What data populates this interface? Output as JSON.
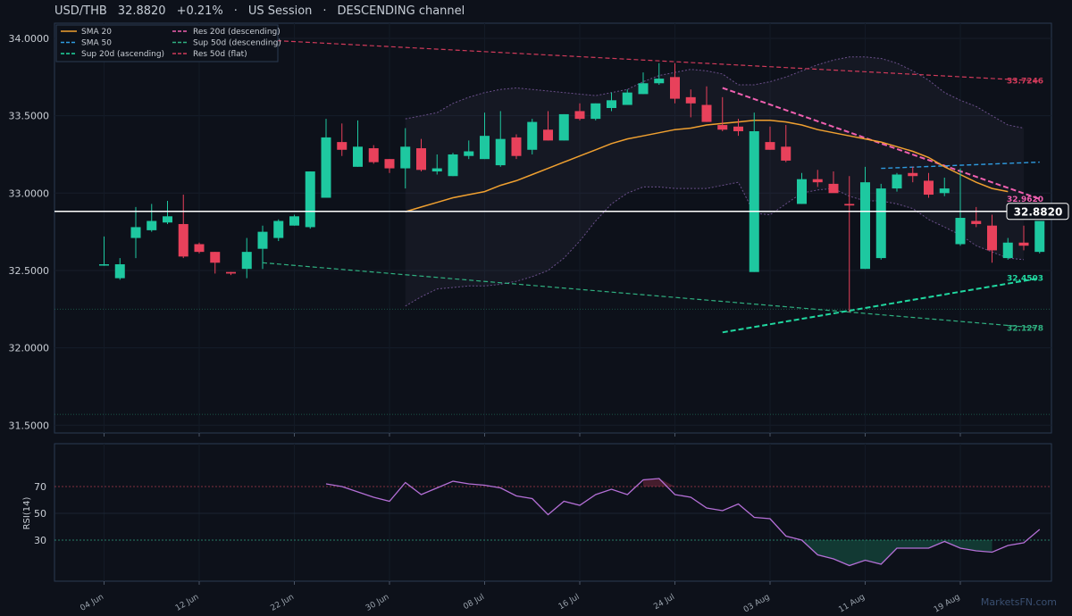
{
  "header": {
    "symbol": "USD/THB",
    "price": "32.8820",
    "change": "+0.21%",
    "sep1": "·",
    "session": "US Session",
    "sep2": "·",
    "channel": "DESCENDING channel"
  },
  "watermark": "MarketsFN.com",
  "colors": {
    "background": "#0d111a",
    "up": "#1ec8a0",
    "down": "#e8415b",
    "sma20": "#f0a030",
    "sma50": "#2f9be0",
    "res20": "#f060b0",
    "sup20": "#20d8a0",
    "res50": "#d03a5a",
    "sup50": "#2fb080",
    "rsi": "#b46fd6"
  },
  "chart_data": [
    {
      "type": "candlestick",
      "yticks": [
        "34.0000",
        "33.5000",
        "33.0000",
        "32.5000",
        "32.0000",
        "31.5000"
      ],
      "ylim": [
        31.5,
        34.0
      ],
      "xticks": [
        "04 Jun",
        "12 Jun",
        "22 Jun",
        "30 Jun",
        "08 Jul",
        "16 Jul",
        "24 Jul",
        "03 Aug",
        "11 Aug",
        "19 Aug"
      ],
      "current_price": "32.8820",
      "legend": [
        {
          "name": "SMA 20",
          "style": "solid",
          "color": "#f0a030"
        },
        {
          "name": "SMA 50",
          "style": "dashed",
          "color": "#2f9be0"
        },
        {
          "name": "Sup 20d (ascending)",
          "style": "dashed",
          "color": "#20d8a0"
        },
        {
          "name": "Res 20d (descending)",
          "style": "dashed",
          "color": "#f060b0"
        },
        {
          "name": "Sup 50d (descending)",
          "style": "dashed",
          "color": "#2fb080"
        },
        {
          "name": "Res 50d (flat)",
          "style": "dashed",
          "color": "#d03a5a"
        }
      ],
      "level_labels": [
        {
          "value": "33.7246",
          "color": "#d03a5a"
        },
        {
          "value": "32.9620",
          "color": "#f060b0"
        },
        {
          "value": "32.4503",
          "color": "#20d8a0"
        },
        {
          "value": "32.1278",
          "color": "#2fb080"
        }
      ],
      "candles": [
        {
          "o": 32.54,
          "h": 32.72,
          "l": 32.53,
          "c": 32.54
        },
        {
          "o": 32.45,
          "h": 32.58,
          "l": 32.44,
          "c": 32.54
        },
        {
          "o": 32.71,
          "h": 32.91,
          "l": 32.58,
          "c": 32.78
        },
        {
          "o": 32.76,
          "h": 32.93,
          "l": 32.75,
          "c": 32.82
        },
        {
          "o": 32.81,
          "h": 32.95,
          "l": 32.8,
          "c": 32.85
        },
        {
          "o": 32.8,
          "h": 32.99,
          "l": 32.58,
          "c": 32.59
        },
        {
          "o": 32.67,
          "h": 32.68,
          "l": 32.61,
          "c": 32.62
        },
        {
          "o": 32.62,
          "h": 32.62,
          "l": 32.48,
          "c": 32.55
        },
        {
          "o": 32.49,
          "h": 32.49,
          "l": 32.47,
          "c": 32.48
        },
        {
          "o": 32.51,
          "h": 32.71,
          "l": 32.45,
          "c": 32.62
        },
        {
          "o": 32.64,
          "h": 32.79,
          "l": 32.51,
          "c": 32.75
        },
        {
          "o": 32.71,
          "h": 32.83,
          "l": 32.69,
          "c": 32.82
        },
        {
          "o": 32.79,
          "h": 32.86,
          "l": 32.79,
          "c": 32.85
        },
        {
          "o": 32.78,
          "h": 33.14,
          "l": 32.77,
          "c": 33.14
        },
        {
          "o": 32.97,
          "h": 33.48,
          "l": 32.97,
          "c": 33.36
        },
        {
          "o": 33.33,
          "h": 33.45,
          "l": 33.24,
          "c": 33.28
        },
        {
          "o": 33.17,
          "h": 33.47,
          "l": 33.17,
          "c": 33.3
        },
        {
          "o": 33.29,
          "h": 33.31,
          "l": 33.19,
          "c": 33.2
        },
        {
          "o": 33.22,
          "h": 33.22,
          "l": 33.13,
          "c": 33.16
        },
        {
          "o": 33.16,
          "h": 33.42,
          "l": 33.03,
          "c": 33.3
        },
        {
          "o": 33.29,
          "h": 33.35,
          "l": 33.14,
          "c": 33.15
        },
        {
          "o": 33.14,
          "h": 33.25,
          "l": 33.12,
          "c": 33.16
        },
        {
          "o": 33.11,
          "h": 33.26,
          "l": 33.11,
          "c": 33.25
        },
        {
          "o": 33.24,
          "h": 33.34,
          "l": 33.22,
          "c": 33.27
        },
        {
          "o": 33.22,
          "h": 33.52,
          "l": 33.22,
          "c": 33.37
        },
        {
          "o": 33.18,
          "h": 33.53,
          "l": 33.17,
          "c": 33.35
        },
        {
          "o": 33.36,
          "h": 33.38,
          "l": 33.22,
          "c": 33.24
        },
        {
          "o": 33.28,
          "h": 33.48,
          "l": 33.25,
          "c": 33.46
        },
        {
          "o": 33.41,
          "h": 33.53,
          "l": 33.34,
          "c": 33.34
        },
        {
          "o": 33.34,
          "h": 33.51,
          "l": 33.34,
          "c": 33.51
        },
        {
          "o": 33.53,
          "h": 33.58,
          "l": 33.47,
          "c": 33.48
        },
        {
          "o": 33.48,
          "h": 33.58,
          "l": 33.47,
          "c": 33.58
        },
        {
          "o": 33.55,
          "h": 33.65,
          "l": 33.53,
          "c": 33.6
        },
        {
          "o": 33.57,
          "h": 33.67,
          "l": 33.57,
          "c": 33.65
        },
        {
          "o": 33.64,
          "h": 33.78,
          "l": 33.64,
          "c": 33.71
        },
        {
          "o": 33.71,
          "h": 33.84,
          "l": 33.7,
          "c": 33.74
        },
        {
          "o": 33.75,
          "h": 33.84,
          "l": 33.58,
          "c": 33.61
        },
        {
          "o": 33.62,
          "h": 33.67,
          "l": 33.49,
          "c": 33.58
        },
        {
          "o": 33.57,
          "h": 33.69,
          "l": 33.46,
          "c": 33.46
        },
        {
          "o": 33.44,
          "h": 33.62,
          "l": 33.4,
          "c": 33.41
        },
        {
          "o": 33.43,
          "h": 33.48,
          "l": 33.37,
          "c": 33.4
        },
        {
          "o": 32.49,
          "h": 33.52,
          "l": 32.49,
          "c": 33.4
        },
        {
          "o": 33.33,
          "h": 33.43,
          "l": 33.28,
          "c": 33.28
        },
        {
          "o": 33.3,
          "h": 33.44,
          "l": 33.2,
          "c": 33.21
        },
        {
          "o": 32.93,
          "h": 33.13,
          "l": 32.93,
          "c": 33.09
        },
        {
          "o": 33.09,
          "h": 33.15,
          "l": 33.04,
          "c": 33.07
        },
        {
          "o": 33.06,
          "h": 33.14,
          "l": 33.01,
          "c": 33.0
        },
        {
          "o": 32.93,
          "h": 33.11,
          "l": 32.23,
          "c": 32.92
        },
        {
          "o": 32.51,
          "h": 33.17,
          "l": 32.51,
          "c": 33.07
        },
        {
          "o": 32.58,
          "h": 33.06,
          "l": 32.57,
          "c": 33.03
        },
        {
          "o": 33.03,
          "h": 33.13,
          "l": 33.01,
          "c": 33.12
        },
        {
          "o": 33.13,
          "h": 33.17,
          "l": 33.07,
          "c": 33.11
        },
        {
          "o": 33.08,
          "h": 33.13,
          "l": 32.97,
          "c": 32.99
        },
        {
          "o": 33.0,
          "h": 33.1,
          "l": 32.98,
          "c": 33.03
        },
        {
          "o": 32.67,
          "h": 33.16,
          "l": 32.66,
          "c": 32.84
        },
        {
          "o": 32.82,
          "h": 32.91,
          "l": 32.78,
          "c": 32.8
        },
        {
          "o": 32.79,
          "h": 32.86,
          "l": 32.55,
          "c": 32.63
        },
        {
          "o": 32.58,
          "h": 32.71,
          "l": 32.57,
          "c": 32.68
        },
        {
          "o": 32.68,
          "h": 32.79,
          "l": 32.63,
          "c": 32.66
        },
        {
          "o": 32.62,
          "h": 32.82,
          "l": 32.61,
          "c": 32.82
        }
      ]
    },
    {
      "type": "line",
      "ylabel": "RSI(14)",
      "yticks": [
        "70",
        "50",
        "30"
      ],
      "ylim": [
        0,
        100
      ],
      "overbought": 70,
      "oversold": 30,
      "x": [
        14,
        15,
        16,
        17,
        18,
        19,
        20,
        21,
        22,
        23,
        24,
        25,
        26,
        27,
        28,
        29,
        30,
        31,
        32,
        33,
        34,
        35,
        36,
        37,
        38,
        39,
        40,
        41,
        42,
        43,
        44,
        45,
        46,
        47,
        48,
        49,
        50,
        51,
        52,
        53,
        54,
        55,
        56,
        57,
        58,
        59
      ],
      "values": [
        72,
        70,
        66,
        62,
        59,
        73,
        64,
        69,
        74,
        72,
        71,
        69,
        63,
        61,
        49,
        59,
        56,
        64,
        68,
        64,
        75,
        76,
        64,
        62,
        54,
        52,
        57,
        47,
        46,
        33,
        30,
        19,
        16,
        11,
        15,
        12,
        24,
        24,
        24,
        29,
        24,
        22,
        21,
        26,
        28,
        38
      ]
    }
  ]
}
